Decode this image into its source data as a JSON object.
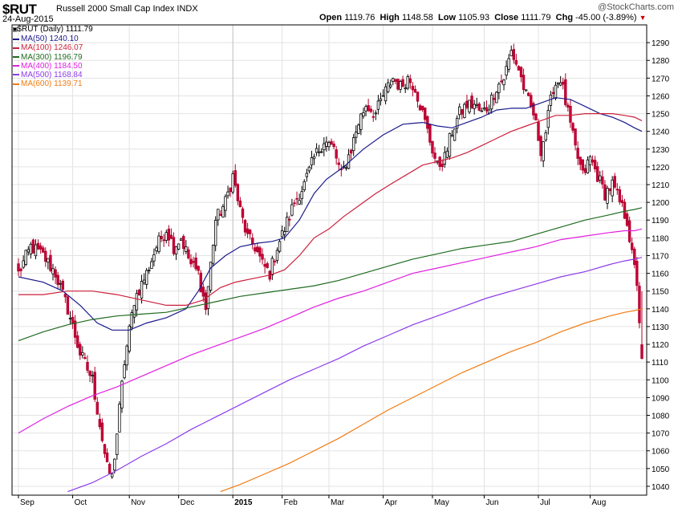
{
  "header": {
    "symbol": "$RUT",
    "index_name": "Russell 2000 Small Cap Index",
    "exchange": "INDX",
    "date": "24-Aug-2015",
    "open_label": "Open",
    "open": "1119.76",
    "high_label": "High",
    "high": "1148.58",
    "low_label": "Low",
    "low": "1105.93",
    "close_label": "Close",
    "close": "1111.79",
    "chg_label": "Chg",
    "chg": "-45.00 (-3.89%)",
    "watermark": "@StockCharts.com"
  },
  "legend": [
    {
      "label": "$RUT (Daily) 1111.79",
      "color": "#000000"
    },
    {
      "label": "MA(50) 1240.10",
      "color": "#1a1a8c"
    },
    {
      "label": "MA(100) 1246.07",
      "color": "#cc1f3a"
    },
    {
      "label": "MA(300) 1196.79",
      "color": "#1f6b1f"
    },
    {
      "label": "MA(400) 1184.50",
      "color": "#e020e0"
    },
    {
      "label": "MA(500) 1168.84",
      "color": "#8c3be8"
    },
    {
      "label": "MA(600) 1139.71",
      "color": "#f07c13"
    }
  ],
  "chart_data": {
    "type": "candlestick",
    "title": "$RUT Russell 2000 Small Cap Index INDX",
    "ylim": [
      1035,
      1300
    ],
    "yticks": [
      1040,
      1050,
      1060,
      1070,
      1080,
      1090,
      1100,
      1110,
      1120,
      1130,
      1140,
      1150,
      1160,
      1170,
      1180,
      1190,
      1200,
      1210,
      1220,
      1230,
      1240,
      1250,
      1260,
      1270,
      1280,
      1290
    ],
    "xlim": [
      0,
      253
    ],
    "month_ticks": [
      {
        "label": "Sep",
        "x": 0
      },
      {
        "label": "Oct",
        "x": 22
      },
      {
        "label": "Nov",
        "x": 45
      },
      {
        "label": "Dec",
        "x": 65
      },
      {
        "label": "2015",
        "x": 87,
        "bold": true
      },
      {
        "label": "Feb",
        "x": 107
      },
      {
        "label": "Mar",
        "x": 126
      },
      {
        "label": "Apr",
        "x": 148
      },
      {
        "label": "May",
        "x": 168
      },
      {
        "label": "Jun",
        "x": 189
      },
      {
        "label": "Jul",
        "x": 211
      },
      {
        "label": "Aug",
        "x": 232
      }
    ],
    "close_anchors": [
      [
        0,
        1160
      ],
      [
        5,
        1175
      ],
      [
        10,
        1170
      ],
      [
        15,
        1160
      ],
      [
        20,
        1140
      ],
      [
        25,
        1115
      ],
      [
        30,
        1100
      ],
      [
        33,
        1075
      ],
      [
        36,
        1050
      ],
      [
        38,
        1045
      ],
      [
        40,
        1070
      ],
      [
        43,
        1110
      ],
      [
        47,
        1145
      ],
      [
        52,
        1160
      ],
      [
        56,
        1175
      ],
      [
        60,
        1185
      ],
      [
        63,
        1175
      ],
      [
        66,
        1180
      ],
      [
        70,
        1165
      ],
      [
        73,
        1160
      ],
      [
        76,
        1140
      ],
      [
        80,
        1190
      ],
      [
        84,
        1200
      ],
      [
        87,
        1215
      ],
      [
        90,
        1195
      ],
      [
        93,
        1180
      ],
      [
        96,
        1175
      ],
      [
        99,
        1165
      ],
      [
        102,
        1160
      ],
      [
        105,
        1175
      ],
      [
        108,
        1185
      ],
      [
        112,
        1200
      ],
      [
        116,
        1210
      ],
      [
        120,
        1225
      ],
      [
        124,
        1235
      ],
      [
        128,
        1230
      ],
      [
        131,
        1215
      ],
      [
        135,
        1230
      ],
      [
        138,
        1245
      ],
      [
        141,
        1255
      ],
      [
        145,
        1250
      ],
      [
        148,
        1260
      ],
      [
        152,
        1270
      ],
      [
        155,
        1265
      ],
      [
        158,
        1270
      ],
      [
        161,
        1265
      ],
      [
        164,
        1250
      ],
      [
        167,
        1235
      ],
      [
        170,
        1220
      ],
      [
        173,
        1225
      ],
      [
        176,
        1240
      ],
      [
        179,
        1250
      ],
      [
        182,
        1255
      ],
      [
        185,
        1255
      ],
      [
        188,
        1250
      ],
      [
        191,
        1255
      ],
      [
        194,
        1265
      ],
      [
        197,
        1270
      ],
      [
        200,
        1285
      ],
      [
        203,
        1275
      ],
      [
        206,
        1260
      ],
      [
        209,
        1250
      ],
      [
        212,
        1230
      ],
      [
        214,
        1240
      ],
      [
        217,
        1265
      ],
      [
        220,
        1270
      ],
      [
        223,
        1250
      ],
      [
        226,
        1230
      ],
      [
        229,
        1215
      ],
      [
        232,
        1225
      ],
      [
        235,
        1215
      ],
      [
        238,
        1205
      ],
      [
        241,
        1210
      ],
      [
        244,
        1200
      ],
      [
        247,
        1190
      ],
      [
        249,
        1170
      ],
      [
        251,
        1155
      ],
      [
        253,
        1112
      ]
    ],
    "series": [
      {
        "name": "MA(50)",
        "color": "#1a1a8c",
        "points": [
          [
            0,
            1158
          ],
          [
            10,
            1155
          ],
          [
            18,
            1150
          ],
          [
            25,
            1142
          ],
          [
            32,
            1132
          ],
          [
            38,
            1128
          ],
          [
            45,
            1128
          ],
          [
            52,
            1132
          ],
          [
            60,
            1135
          ],
          [
            68,
            1140
          ],
          [
            73,
            1150
          ],
          [
            78,
            1163
          ],
          [
            84,
            1170
          ],
          [
            90,
            1175
          ],
          [
            97,
            1177
          ],
          [
            103,
            1178
          ],
          [
            108,
            1180
          ],
          [
            114,
            1190
          ],
          [
            120,
            1205
          ],
          [
            125,
            1213
          ],
          [
            132,
            1220
          ],
          [
            140,
            1230
          ],
          [
            148,
            1238
          ],
          [
            156,
            1244
          ],
          [
            164,
            1245
          ],
          [
            170,
            1243
          ],
          [
            176,
            1242
          ],
          [
            182,
            1245
          ],
          [
            188,
            1248
          ],
          [
            194,
            1252
          ],
          [
            200,
            1253
          ],
          [
            206,
            1253
          ],
          [
            212,
            1256
          ],
          [
            218,
            1259
          ],
          [
            224,
            1258
          ],
          [
            230,
            1254
          ],
          [
            236,
            1250
          ],
          [
            241,
            1248
          ],
          [
            246,
            1245
          ],
          [
            250,
            1242
          ],
          [
            253,
            1240
          ]
        ]
      },
      {
        "name": "MA(100)",
        "color": "#cc1f3a",
        "points": [
          [
            0,
            1148
          ],
          [
            10,
            1148
          ],
          [
            20,
            1150
          ],
          [
            30,
            1150
          ],
          [
            40,
            1148
          ],
          [
            50,
            1145
          ],
          [
            60,
            1142
          ],
          [
            68,
            1142
          ],
          [
            75,
            1145
          ],
          [
            82,
            1152
          ],
          [
            88,
            1155
          ],
          [
            95,
            1157
          ],
          [
            102,
            1159
          ],
          [
            108,
            1162
          ],
          [
            114,
            1170
          ],
          [
            120,
            1180
          ],
          [
            126,
            1185
          ],
          [
            132,
            1192
          ],
          [
            138,
            1198
          ],
          [
            145,
            1205
          ],
          [
            152,
            1211
          ],
          [
            158,
            1216
          ],
          [
            164,
            1221
          ],
          [
            170,
            1223
          ],
          [
            176,
            1225
          ],
          [
            182,
            1228
          ],
          [
            188,
            1232
          ],
          [
            194,
            1236
          ],
          [
            200,
            1240
          ],
          [
            206,
            1243
          ],
          [
            212,
            1246
          ],
          [
            218,
            1249
          ],
          [
            224,
            1249
          ],
          [
            230,
            1250
          ],
          [
            236,
            1250
          ],
          [
            241,
            1250
          ],
          [
            246,
            1249
          ],
          [
            250,
            1248
          ],
          [
            253,
            1246
          ]
        ]
      },
      {
        "name": "MA(300)",
        "color": "#1f6b1f",
        "points": [
          [
            0,
            1122
          ],
          [
            10,
            1127
          ],
          [
            20,
            1131
          ],
          [
            30,
            1134
          ],
          [
            40,
            1136
          ],
          [
            50,
            1137
          ],
          [
            60,
            1138
          ],
          [
            70,
            1141
          ],
          [
            80,
            1144
          ],
          [
            90,
            1147
          ],
          [
            100,
            1149
          ],
          [
            110,
            1151
          ],
          [
            120,
            1153
          ],
          [
            130,
            1156
          ],
          [
            140,
            1160
          ],
          [
            150,
            1164
          ],
          [
            160,
            1168
          ],
          [
            170,
            1171
          ],
          [
            180,
            1174
          ],
          [
            190,
            1176
          ],
          [
            200,
            1178
          ],
          [
            210,
            1182
          ],
          [
            220,
            1186
          ],
          [
            230,
            1190
          ],
          [
            240,
            1193
          ],
          [
            246,
            1195
          ],
          [
            250,
            1196
          ],
          [
            253,
            1197
          ]
        ]
      },
      {
        "name": "MA(400)",
        "color": "#e020e0",
        "points": [
          [
            0,
            1070
          ],
          [
            10,
            1078
          ],
          [
            20,
            1085
          ],
          [
            30,
            1091
          ],
          [
            40,
            1096
          ],
          [
            50,
            1102
          ],
          [
            60,
            1108
          ],
          [
            70,
            1114
          ],
          [
            80,
            1119
          ],
          [
            90,
            1124
          ],
          [
            100,
            1129
          ],
          [
            110,
            1135
          ],
          [
            120,
            1141
          ],
          [
            130,
            1146
          ],
          [
            140,
            1150
          ],
          [
            150,
            1155
          ],
          [
            160,
            1160
          ],
          [
            170,
            1163
          ],
          [
            180,
            1166
          ],
          [
            190,
            1169
          ],
          [
            200,
            1172
          ],
          [
            210,
            1175
          ],
          [
            220,
            1179
          ],
          [
            230,
            1181
          ],
          [
            240,
            1183
          ],
          [
            246,
            1184
          ],
          [
            250,
            1184
          ],
          [
            253,
            1185
          ]
        ]
      },
      {
        "name": "MA(500)",
        "color": "#8c3be8",
        "points": [
          [
            20,
            1037
          ],
          [
            30,
            1042
          ],
          [
            40,
            1049
          ],
          [
            50,
            1057
          ],
          [
            60,
            1064
          ],
          [
            70,
            1072
          ],
          [
            80,
            1079
          ],
          [
            90,
            1086
          ],
          [
            100,
            1093
          ],
          [
            110,
            1100
          ],
          [
            120,
            1106
          ],
          [
            130,
            1112
          ],
          [
            140,
            1119
          ],
          [
            150,
            1125
          ],
          [
            160,
            1131
          ],
          [
            170,
            1136
          ],
          [
            180,
            1141
          ],
          [
            190,
            1146
          ],
          [
            200,
            1150
          ],
          [
            210,
            1154
          ],
          [
            220,
            1158
          ],
          [
            230,
            1161
          ],
          [
            240,
            1165
          ],
          [
            246,
            1167
          ],
          [
            250,
            1168
          ],
          [
            253,
            1169
          ]
        ]
      },
      {
        "name": "MA(600)",
        "color": "#f07c13",
        "points": [
          [
            82,
            1037
          ],
          [
            90,
            1041
          ],
          [
            100,
            1047
          ],
          [
            110,
            1053
          ],
          [
            120,
            1060
          ],
          [
            130,
            1067
          ],
          [
            140,
            1075
          ],
          [
            150,
            1083
          ],
          [
            160,
            1090
          ],
          [
            170,
            1097
          ],
          [
            180,
            1104
          ],
          [
            190,
            1110
          ],
          [
            200,
            1116
          ],
          [
            210,
            1121
          ],
          [
            220,
            1127
          ],
          [
            230,
            1132
          ],
          [
            240,
            1136
          ],
          [
            246,
            1138
          ],
          [
            250,
            1139
          ],
          [
            253,
            1140
          ]
        ]
      }
    ]
  }
}
